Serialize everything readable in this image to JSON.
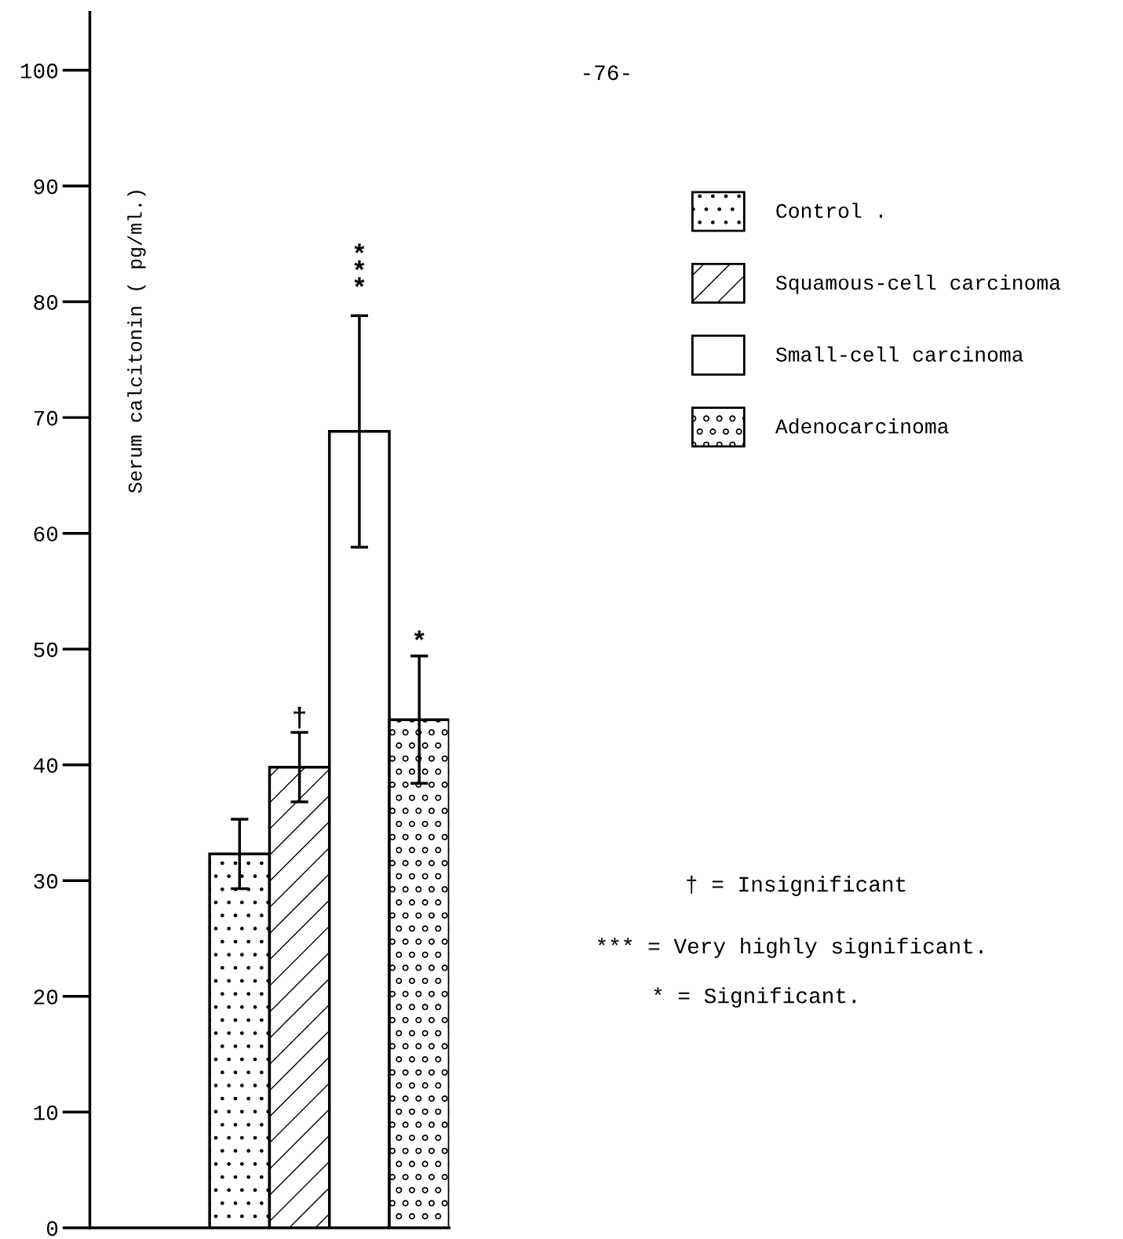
{
  "chart_data": {
    "type": "bar",
    "ylabel": "Serum calcitonin ( pg/ml.)",
    "categories": [
      null,
      null,
      null,
      null,
      null,
      null
    ],
    "series": [
      {
        "name": "Control .",
        "color": "#000000",
        "values": [
          null,
          null,
          32.3,
          null,
          null,
          null
        ],
        "errors": [
          null,
          null,
          3,
          null,
          null,
          null
        ]
      },
      {
        "name": "Squamous-cell carcinoma",
        "color": "#000000",
        "values": [
          null,
          null,
          null,
          39.8,
          null,
          null
        ],
        "errors": [
          null,
          null,
          null,
          3,
          null,
          null
        ],
        "value_labels": [
          null,
          null,
          null,
          "†",
          null,
          null
        ]
      },
      {
        "name": "Small-cell carcinoma",
        "color": "#ffffff",
        "values": [
          null,
          null,
          null,
          null,
          68.8,
          null
        ],
        "errors": [
          null,
          null,
          null,
          null,
          10,
          null
        ]
      },
      {
        "name": "Adenocarcinoma",
        "color": "#000000",
        "values": [
          null,
          null,
          null,
          null,
          null,
          43.9
        ],
        "errors": [
          null,
          null,
          null,
          null,
          null,
          5.5
        ],
        "value_labels": [
          null,
          null,
          null,
          null,
          null,
          "*"
        ]
      }
    ],
    "ylim": [
      0,
      105
    ],
    "yticks": [
      0,
      10,
      20,
      30,
      40,
      50,
      60,
      70,
      80,
      90,
      100
    ],
    "tick_labels": "y",
    "grid": false,
    "legend": "right",
    "annotations": [
      "***",
      "-76-",
      "† = Insignificant",
      "*** = Very highly significant.",
      "* = Significant."
    ]
  }
}
